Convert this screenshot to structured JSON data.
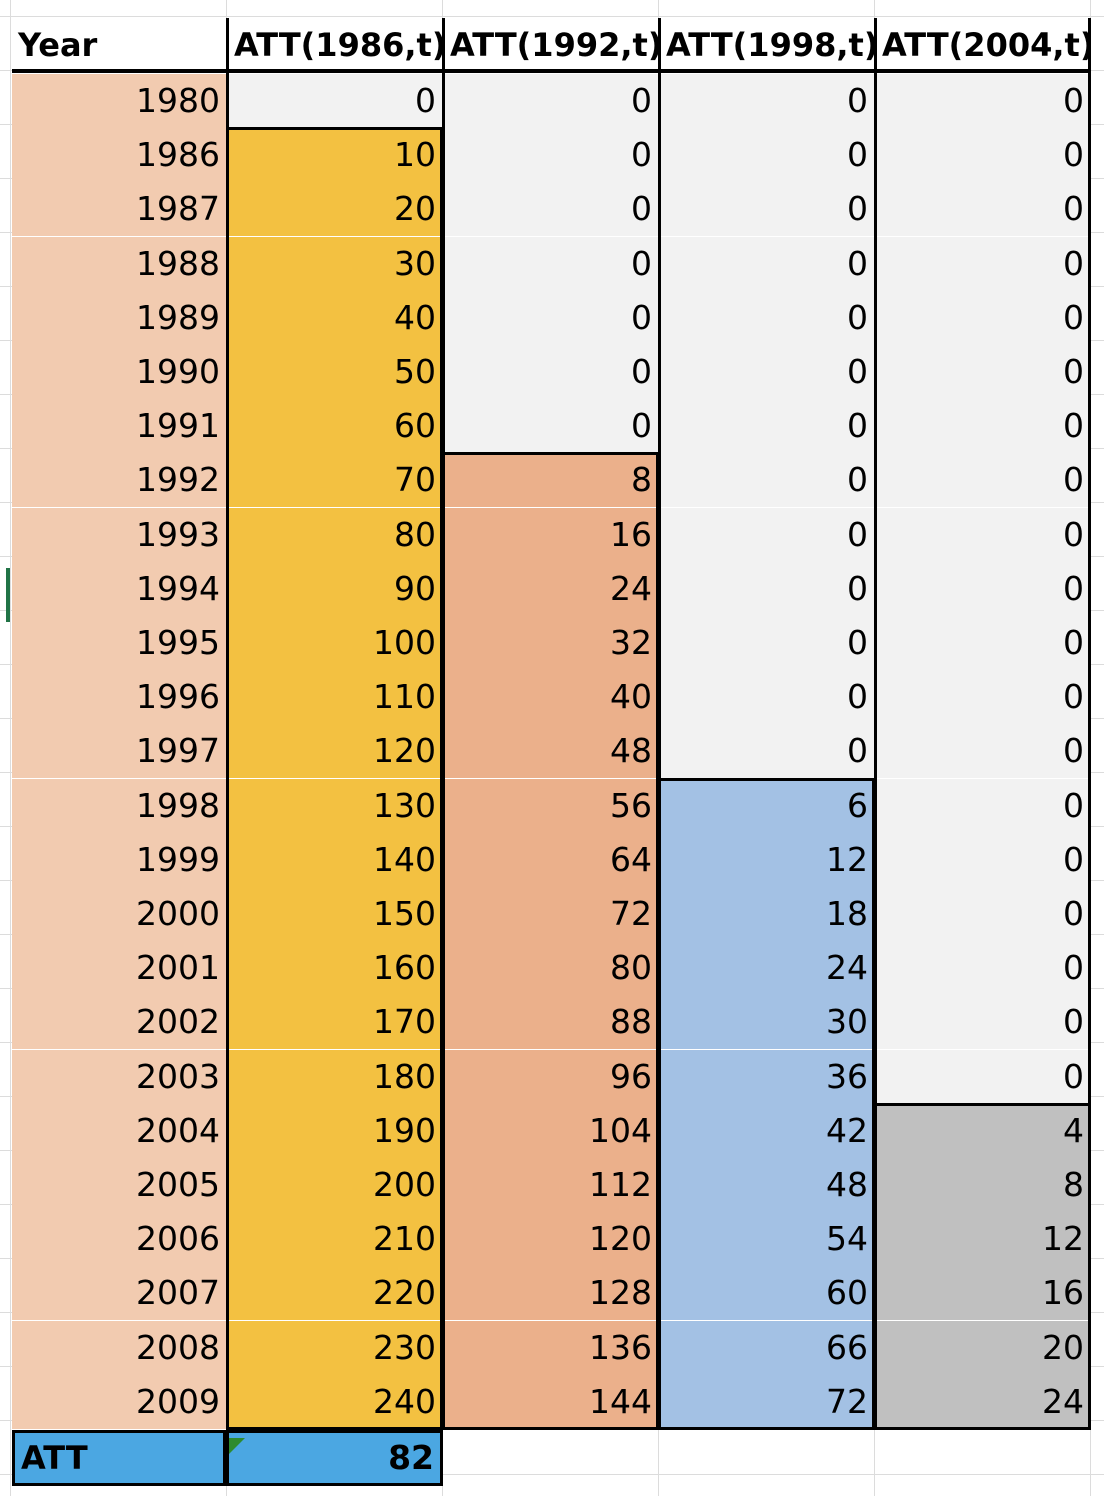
{
  "headers": [
    "Year",
    "ATT(1986,t)",
    "ATT(1992,t)",
    "ATT(1998,t)",
    "ATT(2004,t)"
  ],
  "rows": [
    {
      "year": "1980",
      "v": [
        "0",
        "0",
        "0",
        "0"
      ]
    },
    {
      "year": "1986",
      "v": [
        "10",
        "0",
        "0",
        "0"
      ]
    },
    {
      "year": "1987",
      "v": [
        "20",
        "0",
        "0",
        "0"
      ]
    },
    {
      "year": "1988",
      "v": [
        "30",
        "0",
        "0",
        "0"
      ]
    },
    {
      "year": "1989",
      "v": [
        "40",
        "0",
        "0",
        "0"
      ]
    },
    {
      "year": "1990",
      "v": [
        "50",
        "0",
        "0",
        "0"
      ]
    },
    {
      "year": "1991",
      "v": [
        "60",
        "0",
        "0",
        "0"
      ]
    },
    {
      "year": "1992",
      "v": [
        "70",
        "8",
        "0",
        "0"
      ]
    },
    {
      "year": "1993",
      "v": [
        "80",
        "16",
        "0",
        "0"
      ]
    },
    {
      "year": "1994",
      "v": [
        "90",
        "24",
        "0",
        "0"
      ]
    },
    {
      "year": "1995",
      "v": [
        "100",
        "32",
        "0",
        "0"
      ]
    },
    {
      "year": "1996",
      "v": [
        "110",
        "40",
        "0",
        "0"
      ]
    },
    {
      "year": "1997",
      "v": [
        "120",
        "48",
        "0",
        "0"
      ]
    },
    {
      "year": "1998",
      "v": [
        "130",
        "56",
        "6",
        "0"
      ]
    },
    {
      "year": "1999",
      "v": [
        "140",
        "64",
        "12",
        "0"
      ]
    },
    {
      "year": "2000",
      "v": [
        "150",
        "72",
        "18",
        "0"
      ]
    },
    {
      "year": "2001",
      "v": [
        "160",
        "80",
        "24",
        "0"
      ]
    },
    {
      "year": "2002",
      "v": [
        "170",
        "88",
        "30",
        "0"
      ]
    },
    {
      "year": "2003",
      "v": [
        "180",
        "96",
        "36",
        "0"
      ]
    },
    {
      "year": "2004",
      "v": [
        "190",
        "104",
        "42",
        "4"
      ]
    },
    {
      "year": "2005",
      "v": [
        "200",
        "112",
        "48",
        "8"
      ]
    },
    {
      "year": "2006",
      "v": [
        "210",
        "120",
        "54",
        "12"
      ]
    },
    {
      "year": "2007",
      "v": [
        "220",
        "128",
        "60",
        "16"
      ]
    },
    {
      "year": "2008",
      "v": [
        "230",
        "136",
        "66",
        "20"
      ]
    },
    {
      "year": "2009",
      "v": [
        "240",
        "144",
        "72",
        "24"
      ]
    }
  ],
  "footer": {
    "label": "ATT",
    "value": "82"
  },
  "colors": {
    "year_bg": "#f2cbb0",
    "untreated_bg": "#f2f2f2",
    "cohort_1986": "#f3c141",
    "cohort_1992": "#ebb08b",
    "cohort_1998": "#a3c1e4",
    "cohort_2004": "#c0c0c0",
    "footer_bg": "#4ba7e2"
  }
}
